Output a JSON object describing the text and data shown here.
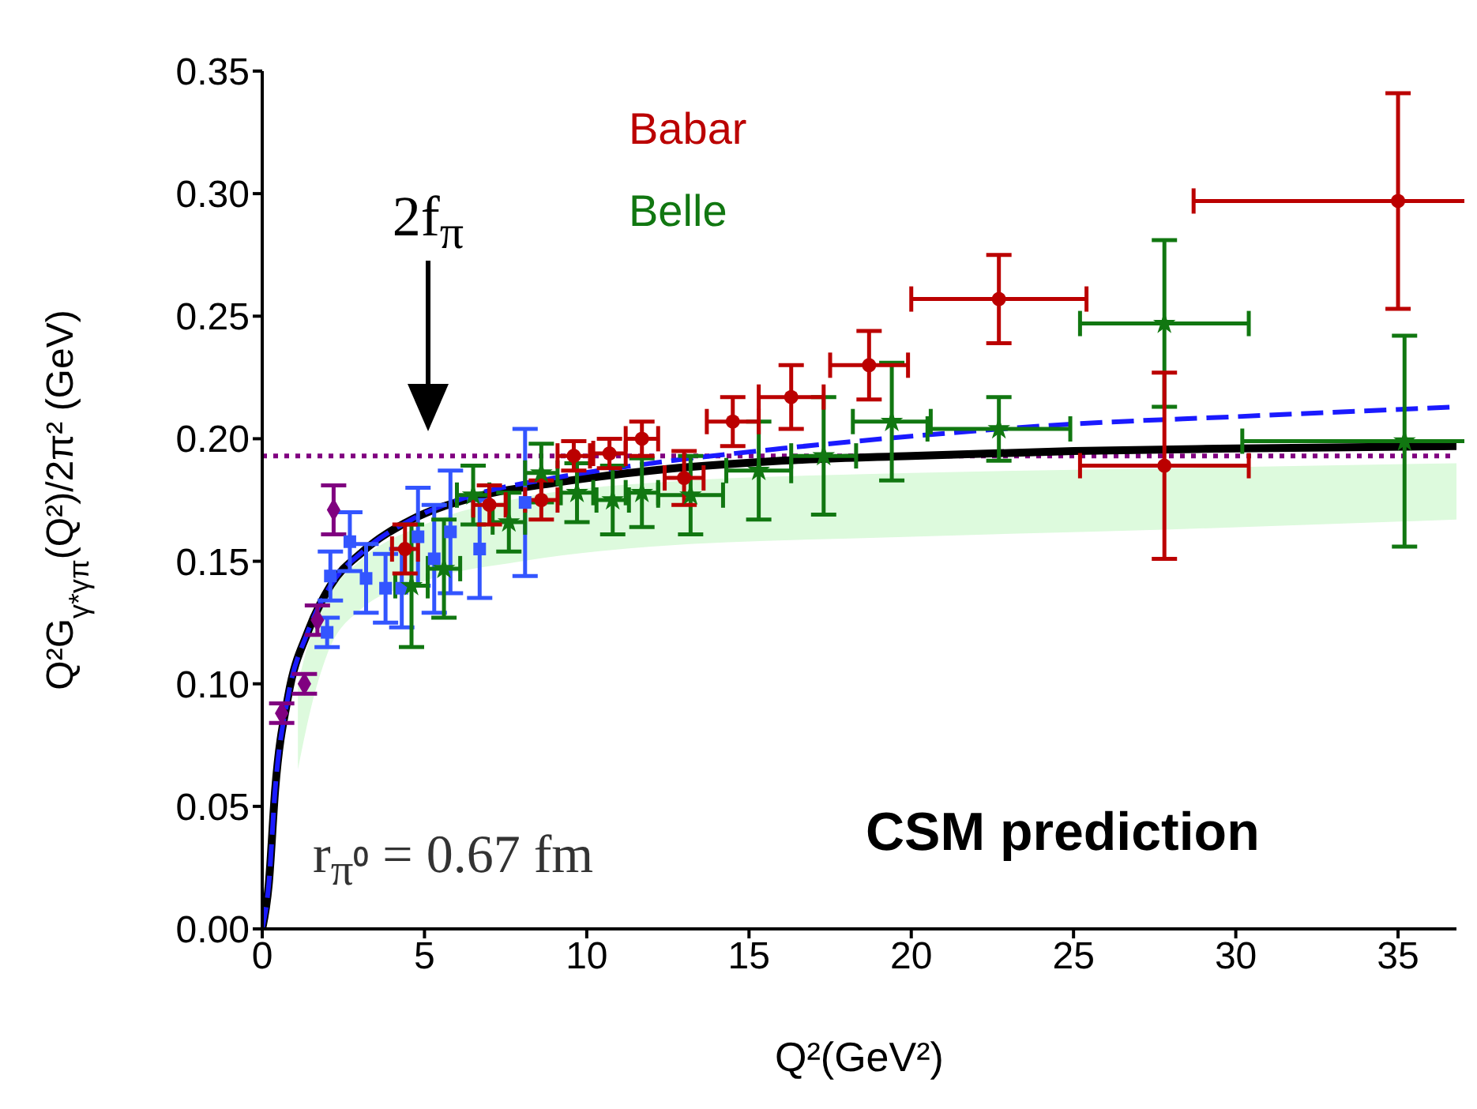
{
  "chart_data": {
    "type": "scatter",
    "xlabel": "Q²(GeV²)",
    "ylabel": "Q²G$_{γ*γπ}$(Q²)/2π² (GeV)",
    "xlim": [
      0,
      36.8
    ],
    "xticks": [
      0,
      5,
      10,
      15,
      20,
      25,
      30,
      35
    ],
    "ylim": [
      0,
      0.35
    ],
    "yticks": [
      {
        "value": 0,
        "label": "0.00"
      },
      {
        "value": 0.05,
        "label": "0.05"
      },
      {
        "value": 0.1,
        "label": "0.10"
      },
      {
        "value": 0.15,
        "label": "0.15"
      },
      {
        "value": 0.2,
        "label": "0.20"
      },
      {
        "value": 0.25,
        "label": "0.25"
      },
      {
        "value": 0.3,
        "label": "0.30"
      },
      {
        "value": 0.35,
        "label": "0.35"
      }
    ],
    "legend": "top",
    "series": [
      {
        "type": "area",
        "color": "#ddfadd",
        "x": [
          1.1,
          1.5,
          2,
          3,
          5,
          8,
          12,
          20,
          28,
          36.8
        ],
        "values": [
          null,
          null,
          null,
          null,
          null,
          null,
          null,
          null,
          null,
          null
        ],
        "lower": [
          0.065,
          0.09,
          0.112,
          0.13,
          0.142,
          0.15,
          0.156,
          0.16,
          0.163,
          0.167
        ],
        "upper": [
          0.1,
          0.12,
          0.135,
          0.15,
          0.165,
          0.176,
          0.182,
          0.186,
          0.188,
          0.19
        ]
      },
      {
        "type": "line",
        "color": "#000000",
        "line_style": "solid",
        "marker": "none",
        "x": [
          0,
          0.2,
          0.4,
          0.8,
          1.4,
          2.1,
          3.1,
          4.6,
          6.5,
          9,
          12,
          16,
          20,
          25,
          30,
          36.8
        ],
        "values": [
          0,
          0.018,
          0.057,
          0.095,
          0.121,
          0.14,
          0.154,
          0.167,
          0.176,
          0.182,
          0.187,
          0.191,
          0.193,
          0.195,
          0.196,
          0.197
        ]
      },
      {
        "type": "line",
        "color": "#1a1aff",
        "line_style": "dashed",
        "marker": "none",
        "x": [
          0,
          0.2,
          0.4,
          0.8,
          1.4,
          2.1,
          3.1,
          4.6,
          6.5,
          9,
          12,
          16,
          20,
          25,
          30,
          36.8
        ],
        "values": [
          0,
          0.018,
          0.057,
          0.095,
          0.121,
          0.14,
          0.154,
          0.167,
          0.177,
          0.184,
          0.19,
          0.196,
          0.201,
          0.206,
          0.209,
          0.213
        ]
      },
      {
        "color": "#800080",
        "marker": "diamond",
        "x": [
          0.6,
          1.3,
          1.7,
          2.2
        ],
        "values": [
          0.088,
          0.1,
          0.126,
          0.171
        ],
        "errors": [
          0.004,
          0.004,
          0.006,
          0.01
        ]
      },
      {
        "color": "#3355ff",
        "marker": "square",
        "x": [
          2.0,
          2.1,
          2.7,
          3.2,
          3.8,
          4.3,
          4.8,
          5.3,
          5.8,
          6.7,
          8.1
        ],
        "values": [
          0.121,
          0.144,
          0.158,
          0.143,
          0.139,
          0.139,
          0.16,
          0.151,
          0.162,
          0.155,
          0.174
        ],
        "errors": [
          0.006,
          0.01,
          0.012,
          0.014,
          0.014,
          0.016,
          0.02,
          0.022,
          0.025,
          0.02,
          0.03
        ]
      },
      {
        "name": "Belle",
        "color": "#117711",
        "marker": "star",
        "x": [
          4.6,
          5.6,
          6.5,
          7.6,
          8.6,
          9.7,
          10.8,
          11.7,
          13.2,
          15.3,
          17.3,
          19.4,
          22.7,
          27.8,
          35.2
        ],
        "values": [
          0.14,
          0.147,
          0.177,
          0.166,
          0.186,
          0.178,
          0.175,
          0.178,
          0.177,
          0.187,
          0.193,
          0.207,
          0.204,
          0.247,
          0.199
        ],
        "errors": [
          0.025,
          0.02,
          0.012,
          0.012,
          0.012,
          0.012,
          0.014,
          0.014,
          0.016,
          0.02,
          0.024,
          0.024,
          0.013,
          0.034,
          0.043
        ],
        "xerrors": [
          0.5,
          0.5,
          0.5,
          0.5,
          0.5,
          0.5,
          0.5,
          0.5,
          1,
          1,
          1,
          1.2,
          2.2,
          2.6,
          5
        ]
      },
      {
        "name": "Babar",
        "color": "#bb0000",
        "marker": "circle",
        "x": [
          4.4,
          7.0,
          8.6,
          9.6,
          10.7,
          11.7,
          13.0,
          14.5,
          16.3,
          18.7,
          22.7,
          27.8,
          35.0
        ],
        "values": [
          0.155,
          0.173,
          0.175,
          0.193,
          0.194,
          0.2,
          0.184,
          0.207,
          0.217,
          0.23,
          0.257,
          0.189,
          0.297
        ],
        "errors": [
          0.01,
          0.008,
          0.008,
          0.006,
          0.006,
          0.007,
          0.011,
          0.01,
          0.013,
          0.014,
          0.018,
          0.038,
          0.044
        ],
        "xerrors": [
          0.4,
          0.5,
          0.5,
          0.5,
          0.5,
          0.5,
          0.6,
          0.8,
          1,
          1.2,
          2.7,
          2.6,
          6.3
        ]
      }
    ],
    "ref_lines": [
      {
        "axis": "y",
        "value": 0.193,
        "color": "#800080",
        "line_style": "dotted"
      }
    ],
    "annotations": [
      "2f$_{π}$",
      "r$_{π⁰}$ = 0.67 fm",
      "CSM prediction"
    ]
  }
}
